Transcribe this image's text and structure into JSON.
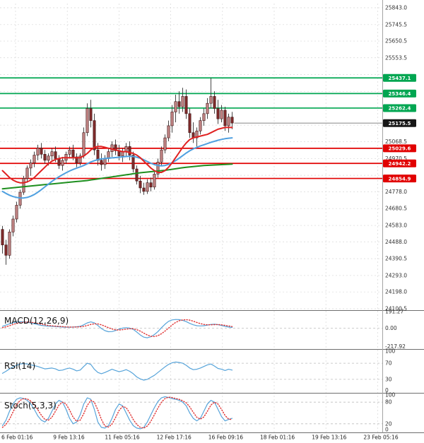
{
  "chart_data": {
    "type": "candlestick",
    "x_ticks": [
      "6 Feb 01:16",
      "9 Feb 13:16",
      "11 Feb 05:16",
      "12 Feb 17:16",
      "16 Feb 09:16",
      "18 Feb 01:16",
      "19 Feb 13:16",
      "23 Feb 05:16"
    ],
    "price_panel": {
      "y_ticks": [
        {
          "v": 25843.0,
          "label": "25843.0"
        },
        {
          "v": 25745.5,
          "label": "25745.5"
        },
        {
          "v": 25650.5,
          "label": "25650.5"
        },
        {
          "v": 25553.5,
          "label": "25553.5"
        },
        {
          "v": 25456.0,
          "label": ""
        },
        {
          "v": 25358.5,
          "label": ""
        },
        {
          "v": 25261.0,
          "label": ""
        },
        {
          "v": 25163.5,
          "label": ""
        },
        {
          "v": 25068.5,
          "label": "25068.5"
        },
        {
          "v": 24970.5,
          "label": "24970.5"
        },
        {
          "v": 24873.0,
          "label": ""
        },
        {
          "v": 24778.0,
          "label": "24778.0"
        },
        {
          "v": 24680.5,
          "label": "24680.5"
        },
        {
          "v": 24583.0,
          "label": "24583.0"
        },
        {
          "v": 24488.0,
          "label": "24488.0"
        },
        {
          "v": 24390.5,
          "label": "24390.5"
        },
        {
          "v": 24293.0,
          "label": "24293.0"
        },
        {
          "v": 24198.0,
          "label": "24198.0"
        },
        {
          "v": 24100.5,
          "label": "24100.5"
        }
      ],
      "levels": {
        "resistance": [
          {
            "value": 25437.1,
            "label": "25437.1"
          },
          {
            "value": 25346.4,
            "label": "25346.4"
          },
          {
            "value": 25262.4,
            "label": "25262.4"
          }
        ],
        "support": [
          {
            "value": 25029.6,
            "label": "25029.6"
          },
          {
            "value": 24942.2,
            "label": "24942.2"
          },
          {
            "value": 24854.9,
            "label": "24854.9"
          }
        ],
        "current": {
          "value": 25175.5,
          "label": "25175.5"
        }
      },
      "candles": [
        [
          24560,
          24580,
          24420,
          24470
        ],
        [
          24470,
          24500,
          24355,
          24410
        ],
        [
          24410,
          24560,
          24390,
          24545
        ],
        [
          24545,
          24640,
          24520,
          24620
        ],
        [
          24620,
          24720,
          24600,
          24700
        ],
        [
          24700,
          24790,
          24680,
          24775
        ],
        [
          24775,
          24870,
          24760,
          24855
        ],
        [
          24855,
          24930,
          24830,
          24915
        ],
        [
          24915,
          24965,
          24870,
          24945
        ],
        [
          24945,
          25010,
          24920,
          24990
        ],
        [
          24990,
          25050,
          24960,
          25030
        ],
        [
          25030,
          25060,
          24970,
          24995
        ],
        [
          24995,
          25020,
          24940,
          24960
        ],
        [
          24960,
          25000,
          24930,
          24985
        ],
        [
          24985,
          25030,
          24960,
          25010
        ],
        [
          25010,
          25040,
          24950,
          24970
        ],
        [
          24970,
          24990,
          24910,
          24930
        ],
        [
          24930,
          24980,
          24900,
          24960
        ],
        [
          24960,
          25010,
          24940,
          24995
        ],
        [
          24995,
          25040,
          24970,
          25020
        ],
        [
          25020,
          25050,
          24960,
          24980
        ],
        [
          24980,
          25000,
          24920,
          24945
        ],
        [
          24945,
          25000,
          24930,
          24985
        ],
        [
          24985,
          25150,
          24970,
          25120
        ],
        [
          25120,
          25290,
          25100,
          25260
        ],
        [
          25260,
          25310,
          25150,
          25190
        ],
        [
          25190,
          25230,
          24990,
          25020
        ],
        [
          25020,
          25060,
          24930,
          24960
        ],
        [
          24960,
          25000,
          24900,
          24935
        ],
        [
          24935,
          24990,
          24910,
          24970
        ],
        [
          24970,
          25030,
          24950,
          25010
        ],
        [
          25010,
          25070,
          24980,
          25050
        ],
        [
          25050,
          25080,
          24990,
          25015
        ],
        [
          25015,
          25050,
          24960,
          24985
        ],
        [
          24985,
          25030,
          24950,
          25010
        ],
        [
          25010,
          25060,
          24980,
          25040
        ],
        [
          25040,
          25070,
          24960,
          24990
        ],
        [
          24990,
          25010,
          24890,
          24910
        ],
        [
          24910,
          24930,
          24820,
          24840
        ],
        [
          24840,
          24870,
          24770,
          24800
        ],
        [
          24800,
          24830,
          24760,
          24780
        ],
        [
          24780,
          24850,
          24765,
          24830
        ],
        [
          24830,
          24860,
          24780,
          24805
        ],
        [
          24805,
          24900,
          24790,
          24880
        ],
        [
          24880,
          24970,
          24860,
          24950
        ],
        [
          24950,
          25040,
          24930,
          25020
        ],
        [
          25020,
          25110,
          25000,
          25090
        ],
        [
          25090,
          25190,
          25070,
          25160
        ],
        [
          25160,
          25280,
          25120,
          25240
        ],
        [
          25240,
          25340,
          25180,
          25300
        ],
        [
          25300,
          25360,
          25230,
          25270
        ],
        [
          25270,
          25380,
          25240,
          25330
        ],
        [
          25330,
          25370,
          25200,
          25230
        ],
        [
          25230,
          25260,
          25090,
          25120
        ],
        [
          25120,
          25180,
          25060,
          25090
        ],
        [
          25090,
          25150,
          25040,
          25130
        ],
        [
          25130,
          25210,
          25110,
          25190
        ],
        [
          25190,
          25260,
          25160,
          25230
        ],
        [
          25230,
          25320,
          25200,
          25290
        ],
        [
          25290,
          25437,
          25260,
          25330
        ],
        [
          25330,
          25360,
          25230,
          25260
        ],
        [
          25260,
          25310,
          25170,
          25200
        ],
        [
          25200,
          25280,
          25180,
          25250
        ],
        [
          25250,
          25270,
          25130,
          25160
        ],
        [
          25160,
          25230,
          25120,
          25210
        ],
        [
          25210,
          25240,
          25140,
          25175.5
        ]
      ],
      "ma_fast_red": [
        24900,
        24880,
        24860,
        24845,
        24835,
        24830,
        24830,
        24835,
        24845,
        24860,
        24880,
        24900,
        24920,
        24940,
        24955,
        24965,
        24970,
        24975,
        24975,
        24975,
        24975,
        24975,
        24975,
        24985,
        25000,
        25020,
        25035,
        25040,
        25040,
        25035,
        25030,
        25025,
        25020,
        25015,
        25010,
        25010,
        25005,
        25000,
        24990,
        24975,
        24955,
        24935,
        24915,
        24900,
        24890,
        24890,
        24900,
        24920,
        24945,
        24975,
        25005,
        25035,
        25060,
        25080,
        25090,
        25095,
        25100,
        25105,
        25110,
        25120,
        25130,
        25140,
        25145,
        25150,
        25150,
        25150
      ],
      "ma_mid_blue": [
        24780,
        24768,
        24758,
        24750,
        24745,
        24742,
        24742,
        24745,
        24752,
        24762,
        24775,
        24790,
        24806,
        24822,
        24838,
        24852,
        24865,
        24877,
        24888,
        24898,
        24907,
        24915,
        24922,
        24930,
        24940,
        24950,
        24958,
        24964,
        24968,
        24970,
        24972,
        24974,
        24976,
        24978,
        24980,
        24982,
        24983,
        24982,
        24978,
        24972,
        24963,
        24953,
        24943,
        24935,
        24930,
        24928,
        24930,
        24936,
        24946,
        24958,
        24972,
        24987,
        25002,
        25015,
        25026,
        25035,
        25043,
        25050,
        25057,
        25064,
        25070,
        25076,
        25081,
        25085,
        25088,
        25090
      ],
      "ma_slow_green": [
        24795,
        24797,
        24799,
        24801,
        24803,
        24805,
        24807,
        24809,
        24811,
        24813,
        24815,
        24817,
        24819,
        24821,
        24823,
        24825,
        24827,
        24829,
        24831,
        24833,
        24835,
        24837,
        24839,
        24841,
        24843,
        24846,
        24849,
        24852,
        24855,
        24858,
        24861,
        24864,
        24867,
        24870,
        24873,
        24876,
        24879,
        24882,
        24885,
        24888,
        24890,
        24892,
        24894,
        24896,
        24898,
        24900,
        24902,
        24905,
        24908,
        24911,
        24914,
        24917,
        24920,
        24922,
        24924,
        24926,
        24928,
        24930,
        24931,
        24932,
        24933,
        24934,
        24935,
        24936,
        24937,
        24938
      ]
    },
    "macd_panel": {
      "label": "MACD(12,26,9)",
      "range": [
        -217.92,
        191.27
      ],
      "y_ticks": [
        {
          "v": 191.27,
          "label": "191.27"
        },
        {
          "v": 0,
          "label": "0.00"
        },
        {
          "v": -217.92,
          "label": "-217.92"
        }
      ],
      "macd_line": [
        20,
        35,
        50,
        62,
        70,
        74,
        73,
        68,
        60,
        50,
        40,
        32,
        26,
        22,
        20,
        18,
        15,
        12,
        10,
        10,
        12,
        15,
        20,
        38,
        60,
        72,
        60,
        30,
        -5,
        -30,
        -42,
        -40,
        -28,
        -12,
        0,
        5,
        0,
        -15,
        -45,
        -80,
        -105,
        -112,
        -100,
        -75,
        -40,
        5,
        45,
        78,
        95,
        100,
        98,
        90,
        75,
        55,
        38,
        28,
        25,
        28,
        35,
        42,
        45,
        40,
        30,
        20,
        12,
        8
      ],
      "signal_line": [
        5,
        15,
        28,
        42,
        54,
        63,
        68,
        70,
        68,
        62,
        54,
        45,
        38,
        31,
        26,
        23,
        20,
        17,
        14,
        12,
        12,
        13,
        15,
        20,
        30,
        42,
        50,
        48,
        38,
        22,
        5,
        -10,
        -20,
        -22,
        -18,
        -12,
        -8,
        -8,
        -18,
        -35,
        -58,
        -80,
        -95,
        -98,
        -88,
        -65,
        -35,
        0,
        35,
        65,
        85,
        95,
        97,
        92,
        80,
        65,
        52,
        42,
        38,
        38,
        40,
        41,
        38,
        32,
        25,
        18
      ]
    },
    "rsi_panel": {
      "label": "RSI(14)",
      "range": [
        0,
        100
      ],
      "y_ticks": [
        {
          "v": 100,
          "label": "100"
        },
        {
          "v": 70,
          "label": "70"
        },
        {
          "v": 30,
          "label": "30"
        },
        {
          "v": 0,
          "label": "0"
        }
      ],
      "dashed_levels": [
        70,
        30
      ],
      "rsi_line": [
        45,
        50,
        56,
        61,
        65,
        68,
        69,
        68,
        66,
        64,
        62,
        59,
        56,
        57,
        58,
        56,
        52,
        53,
        56,
        58,
        55,
        51,
        53,
        62,
        70,
        67,
        55,
        47,
        44,
        47,
        51,
        55,
        52,
        49,
        51,
        54,
        50,
        44,
        36,
        31,
        28,
        30,
        35,
        40,
        47,
        54,
        61,
        67,
        71,
        73,
        72,
        70,
        65,
        58,
        54,
        55,
        58,
        62,
        66,
        68,
        63,
        57,
        55,
        52,
        55,
        53
      ]
    },
    "stoch_panel": {
      "label": "Stoch(5,3,3)",
      "range": [
        0,
        100
      ],
      "y_ticks": [
        {
          "v": 100,
          "label": "100"
        },
        {
          "v": 80,
          "label": "80"
        },
        {
          "v": 20,
          "label": "20"
        },
        {
          "v": 0,
          "label": "0"
        }
      ],
      "dashed_levels": [
        80,
        20
      ],
      "k_line": [
        15,
        30,
        55,
        75,
        88,
        92,
        90,
        85,
        75,
        60,
        42,
        30,
        25,
        35,
        55,
        75,
        85,
        80,
        60,
        35,
        20,
        25,
        45,
        75,
        92,
        88,
        60,
        25,
        10,
        8,
        15,
        35,
        60,
        75,
        70,
        50,
        30,
        15,
        8,
        6,
        10,
        25,
        45,
        65,
        82,
        92,
        95,
        93,
        90,
        88,
        85,
        80,
        70,
        50,
        35,
        28,
        35,
        55,
        75,
        85,
        80,
        60,
        40,
        28,
        32,
        35
      ],
      "d_line": [
        10,
        18,
        33,
        53,
        73,
        85,
        90,
        89,
        83,
        73,
        59,
        44,
        32,
        30,
        38,
        55,
        72,
        80,
        75,
        58,
        38,
        27,
        30,
        48,
        71,
        85,
        80,
        58,
        32,
        14,
        11,
        19,
        37,
        57,
        68,
        65,
        50,
        32,
        18,
        10,
        8,
        14,
        27,
        45,
        64,
        80,
        90,
        94,
        93,
        90,
        88,
        84,
        78,
        67,
        52,
        38,
        33,
        39,
        55,
        72,
        80,
        75,
        60,
        43,
        33,
        32
      ]
    },
    "colors": {
      "background": "#ffffff",
      "grid": "#d8d8d8",
      "indicator_grid": "#bdbdbd",
      "separator": "#6e6e6e",
      "axis_line": "#a3a3a3",
      "tick_text": "#333333",
      "date_text": "#222222",
      "resistance": "#00a651",
      "support": "#e10000",
      "current_label_bg": "#161616",
      "level_label_text": "#ffffff",
      "candle_up_fill": "#c08484",
      "candle_down_fill": "#7e2a2a",
      "candle_stroke": "#401414",
      "wick": "#333333",
      "ma_fast": "#e02222",
      "ma_mid": "#4fa0e0",
      "ma_slow": "#1f8f1f",
      "macd_line": "#57a4da",
      "signal_line": "#e03434",
      "rsi_line": "#57a4da",
      "stoch_k": "#57a4da",
      "stoch_d": "#e03434"
    }
  }
}
